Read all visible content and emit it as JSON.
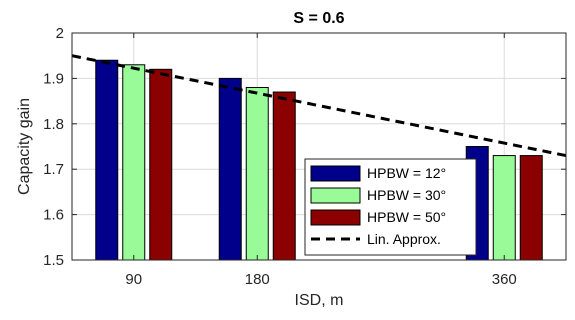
{
  "chart_data": {
    "type": "bar",
    "title": "S = 0.6",
    "xlabel": "ISD, m",
    "ylabel": "Capacity gain",
    "x": [
      90,
      180,
      360
    ],
    "xtick_labels": [
      "90",
      "180",
      "360"
    ],
    "xlim": [
      45,
      405
    ],
    "ylim": [
      1.5,
      2.0
    ],
    "yticks": [
      1.5,
      1.6,
      1.7,
      1.8,
      1.9,
      2.0
    ],
    "ytick_labels": [
      "1.5",
      "1.6",
      "1.7",
      "1.8",
      "1.9",
      "2"
    ],
    "grid": true,
    "legend_position": "bottom-right",
    "series": [
      {
        "name": "HPBW = 12°",
        "color": "#00008b",
        "values": [
          1.94,
          1.9,
          1.75
        ]
      },
      {
        "name": "HPBW = 30°",
        "color": "#98fb98",
        "values": [
          1.93,
          1.88,
          1.73
        ]
      },
      {
        "name": "HPBW = 50°",
        "color": "#8b0000",
        "values": [
          1.92,
          1.87,
          1.73
        ]
      }
    ],
    "line": {
      "name": "Lin. Approx.",
      "color": "#000000",
      "style": "dashed",
      "x": [
        45,
        405
      ],
      "y": [
        1.95,
        1.73
      ]
    }
  }
}
